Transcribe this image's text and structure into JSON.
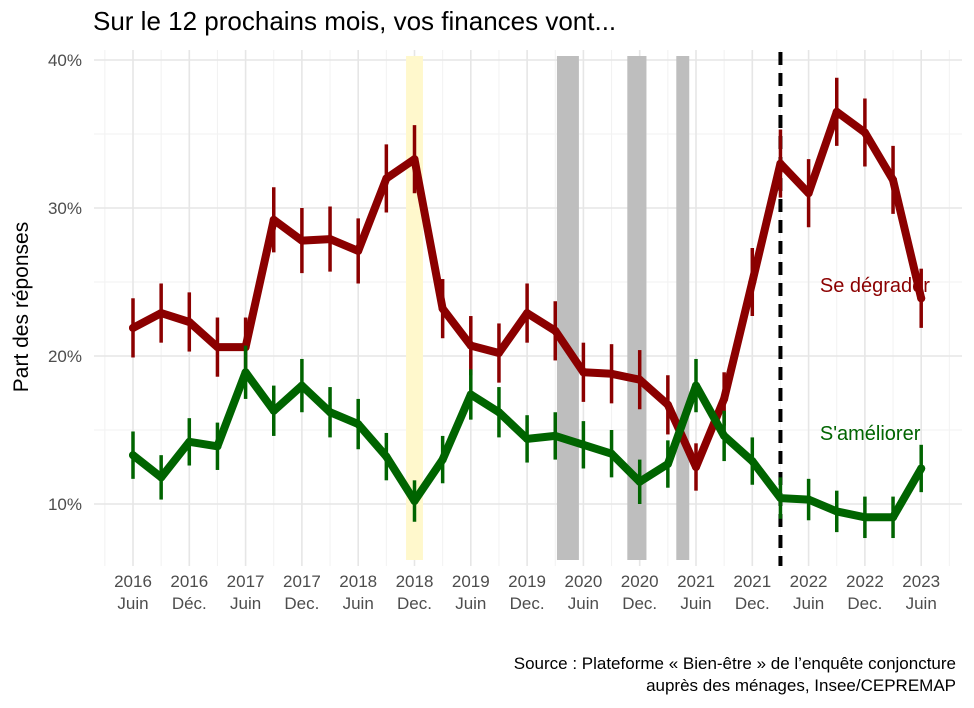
{
  "chart_data": {
    "type": "line",
    "title": "Sur le 12 prochains mois, vos finances vont...",
    "ylabel": "Part des réponses",
    "xlabel": "",
    "ylim": [
      6,
      40
    ],
    "y_ticks": [
      "10%",
      "20%",
      "30%",
      "40%"
    ],
    "y_tick_values": [
      10,
      20,
      30,
      40
    ],
    "x_ticks": [
      {
        "year": "2016",
        "month": "Juin"
      },
      {
        "year": "2016",
        "month": "Déc."
      },
      {
        "year": "2017",
        "month": "Juin"
      },
      {
        "year": "2017",
        "month": "Dec."
      },
      {
        "year": "2018",
        "month": "Juin"
      },
      {
        "year": "2018",
        "month": "Dec."
      },
      {
        "year": "2019",
        "month": "Juin"
      },
      {
        "year": "2019",
        "month": "Dec."
      },
      {
        "year": "2020",
        "month": "Juin"
      },
      {
        "year": "2020",
        "month": "Dec."
      },
      {
        "year": "2021",
        "month": "Juin"
      },
      {
        "year": "2021",
        "month": "Dec."
      },
      {
        "year": "2022",
        "month": "Juin"
      },
      {
        "year": "2022",
        "month": "Dec."
      },
      {
        "year": "2023",
        "month": "Juin"
      }
    ],
    "grid": true,
    "series": [
      {
        "name": "Se dégrader",
        "color": "#8b0000",
        "x": [
          0,
          0.5,
          1,
          1.5,
          2,
          2.5,
          3,
          3.5,
          4,
          4.5,
          5,
          5.5,
          6,
          6.5,
          7,
          7.5,
          8,
          8.5,
          9,
          9.5,
          10,
          10.5,
          11,
          11.5,
          12,
          12.5,
          13,
          13.5,
          14
        ],
        "values": [
          21.9,
          22.9,
          22.3,
          20.6,
          20.6,
          29.2,
          27.8,
          27.9,
          27.1,
          32.0,
          33.3,
          23.2,
          20.7,
          20.2,
          22.9,
          21.7,
          18.9,
          18.8,
          18.4,
          16.7,
          12.5,
          17.1,
          25.0,
          33.0,
          31.0,
          36.5,
          35.1,
          31.9,
          23.9
        ],
        "err": [
          2.0,
          2.0,
          2.0,
          2.0,
          2.0,
          2.2,
          2.2,
          2.2,
          2.2,
          2.3,
          2.3,
          2.0,
          2.0,
          2.0,
          2.0,
          2.0,
          2.0,
          2.0,
          2.0,
          2.0,
          1.6,
          1.8,
          2.3,
          2.3,
          2.3,
          2.3,
          2.3,
          2.3,
          2.0
        ],
        "label": "Se dégrader"
      },
      {
        "name": "S'améliorer",
        "color": "#006400",
        "x": [
          0,
          0.5,
          1,
          1.5,
          2,
          2.5,
          3,
          3.5,
          4,
          4.5,
          5,
          5.5,
          6,
          6.5,
          7,
          7.5,
          8,
          8.5,
          9,
          9.5,
          10,
          10.5,
          11,
          11.5,
          12,
          12.5,
          13,
          13.5,
          14
        ],
        "values": [
          13.3,
          11.8,
          14.2,
          13.9,
          18.9,
          16.3,
          18.0,
          16.2,
          15.4,
          13.2,
          10.2,
          13.0,
          17.4,
          16.2,
          14.4,
          14.6,
          14.0,
          13.4,
          11.5,
          12.7,
          18.0,
          14.6,
          12.9,
          10.4,
          10.3,
          9.5,
          9.1,
          9.1,
          12.4
        ],
        "err": [
          1.6,
          1.5,
          1.6,
          1.6,
          1.8,
          1.7,
          1.8,
          1.7,
          1.7,
          1.6,
          1.4,
          1.6,
          1.7,
          1.7,
          1.6,
          1.6,
          1.6,
          1.6,
          1.5,
          1.6,
          1.8,
          1.7,
          1.6,
          1.4,
          1.4,
          1.4,
          1.4,
          1.4,
          1.6
        ],
        "label": "S'améliorer"
      }
    ],
    "shaded_periods": [
      {
        "from": 4.85,
        "to": 5.15,
        "color": "#fff8cc"
      },
      {
        "from": 7.53,
        "to": 7.92,
        "color": "#bebebe"
      },
      {
        "from": 8.78,
        "to": 9.12,
        "color": "#bebebe"
      },
      {
        "from": 9.65,
        "to": 9.88,
        "color": "#bebebe"
      }
    ],
    "vertical_line": {
      "x": 11.5,
      "style": "dashed",
      "color": "#000000"
    },
    "annotations": [
      {
        "text": "Se dégrader",
        "x": 12.2,
        "y": 24.8,
        "color": "#8b0000"
      },
      {
        "text": "S'améliorer",
        "x": 12.2,
        "y": 14.8,
        "color": "#006400"
      }
    ]
  },
  "caption": {
    "line1": "Source : Plateforme « Bien-être » de l’enquête conjoncture",
    "line2": "auprès des ménages, Insee/CEPREMAP"
  }
}
